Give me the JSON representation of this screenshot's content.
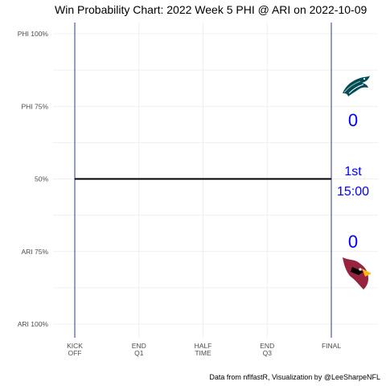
{
  "chart_data": {
    "type": "line",
    "title": "Win Probability Chart: 2022 Week 5 PHI @ ARI on 2022-10-09",
    "xlabel": "",
    "ylabel": "",
    "x_ticks": [
      {
        "pos": 0,
        "lines": [
          "KICK",
          "OFF"
        ]
      },
      {
        "pos": 15,
        "lines": [
          "END",
          "Q1"
        ]
      },
      {
        "pos": 30,
        "lines": [
          "HALF",
          "TIME"
        ]
      },
      {
        "pos": 45,
        "lines": [
          "END",
          "Q3"
        ]
      },
      {
        "pos": 60,
        "lines": [
          "FINAL"
        ]
      }
    ],
    "xlim": [
      0,
      60
    ],
    "y_ticks": [
      {
        "value": 1.0,
        "label": "PHI 100%"
      },
      {
        "value": 0.75,
        "label": "PHI 75%"
      },
      {
        "value": 0.5,
        "label": "50%"
      },
      {
        "value": 0.25,
        "label": "ARI 75%"
      },
      {
        "value": 0.0,
        "label": "ARI 100%"
      }
    ],
    "ylim": [
      0,
      1
    ],
    "grid": true,
    "series": [
      {
        "x": [
          0,
          60
        ],
        "y": [
          0.5,
          0.5
        ],
        "color": "#000000"
      }
    ],
    "reference_lines": [
      0,
      60
    ],
    "annotations": {
      "home_score": "0",
      "away_score": "0",
      "quarter": "1st",
      "clock": "15:00"
    },
    "caption": "Data from nflfastR, Visualization by @LeeSharpeNFL"
  },
  "colors": {
    "line": "#000000",
    "reference_line": "#1a237e",
    "grid": "#ebebeb",
    "annotation_text": "#0000ff",
    "eagles_green": "#004c54",
    "cardinals_red": "#97233f"
  },
  "icons": {
    "away_team": "eagles-logo-icon",
    "home_team": "cardinals-logo-icon"
  }
}
